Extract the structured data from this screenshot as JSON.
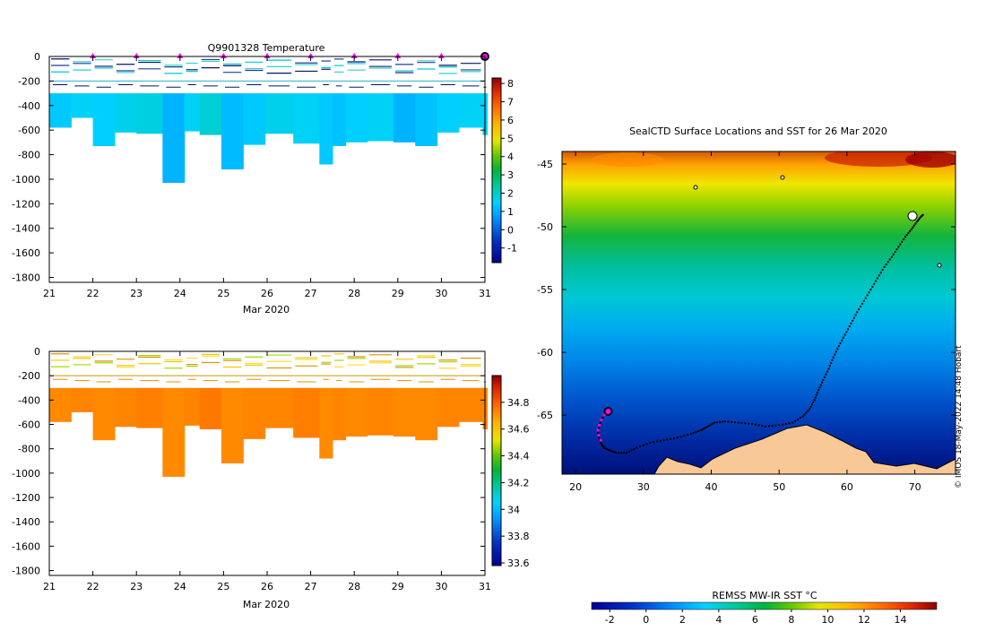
{
  "credit": "© IMOS 18-May-2022 14:48 Hobart",
  "chart_data": [
    {
      "id": "temperature",
      "type": "heatmap",
      "title": "Q9901328  Temperature",
      "xlabel": "Mar 2020",
      "ylabel": "",
      "xlim": [
        21,
        31
      ],
      "ylim": [
        -1840,
        0
      ],
      "xticks": [
        21,
        22,
        23,
        24,
        25,
        26,
        27,
        28,
        29,
        30,
        31
      ],
      "yticks": [
        0,
        -200,
        -400,
        -600,
        -800,
        -1000,
        -1200,
        -1400,
        -1600,
        -1800
      ],
      "colorbar": {
        "min": -1.8,
        "max": 8.3,
        "ticks": [
          8,
          7,
          6,
          5,
          4,
          3,
          2,
          1,
          0,
          -1
        ]
      },
      "reference_depth": -200,
      "marker_days": [
        22,
        23,
        24,
        25,
        26,
        27,
        28,
        29,
        30
      ],
      "profiles": [
        {
          "x0": 21.0,
          "x1": 21.5,
          "bottom": -580,
          "value": 1.4
        },
        {
          "x0": 21.5,
          "x1": 22.0,
          "bottom": -500,
          "value": 1.6
        },
        {
          "x0": 22.0,
          "x1": 22.5,
          "bottom": -730,
          "value": 1.5
        },
        {
          "x0": 22.5,
          "x1": 23.0,
          "bottom": -620,
          "value": 1.7
        },
        {
          "x0": 23.0,
          "x1": 23.6,
          "bottom": -630,
          "value": 1.8
        },
        {
          "x0": 23.6,
          "x1": 24.1,
          "bottom": -1030,
          "value": 1.1
        },
        {
          "x0": 24.1,
          "x1": 24.45,
          "bottom": -610,
          "value": 1.6
        },
        {
          "x0": 24.45,
          "x1": 24.95,
          "bottom": -640,
          "value": 1.9
        },
        {
          "x0": 24.95,
          "x1": 25.45,
          "bottom": -920,
          "value": 1.2
        },
        {
          "x0": 25.45,
          "x1": 25.95,
          "bottom": -720,
          "value": 1.4
        },
        {
          "x0": 25.95,
          "x1": 26.6,
          "bottom": -630,
          "value": 1.7
        },
        {
          "x0": 26.6,
          "x1": 27.2,
          "bottom": -710,
          "value": 1.6
        },
        {
          "x0": 27.2,
          "x1": 27.5,
          "bottom": -880,
          "value": 1.4
        },
        {
          "x0": 27.5,
          "x1": 27.8,
          "bottom": -730,
          "value": 1.3
        },
        {
          "x0": 27.8,
          "x1": 28.3,
          "bottom": -700,
          "value": 1.5
        },
        {
          "x0": 28.3,
          "x1": 28.9,
          "bottom": -690,
          "value": 1.6
        },
        {
          "x0": 28.9,
          "x1": 29.4,
          "bottom": -700,
          "value": 1.1
        },
        {
          "x0": 29.4,
          "x1": 29.9,
          "bottom": -730,
          "value": 1.3
        },
        {
          "x0": 29.9,
          "x1": 30.4,
          "bottom": -620,
          "value": 1.5
        },
        {
          "x0": 30.4,
          "x1": 30.95,
          "bottom": -580,
          "value": 1.6
        },
        {
          "x0": 30.95,
          "x1": 31.05,
          "bottom": -640,
          "value": 1.6
        }
      ]
    },
    {
      "id": "salinity",
      "type": "heatmap",
      "title": "",
      "xlabel": "Mar 2020",
      "ylabel": "",
      "xlim": [
        21,
        31
      ],
      "ylim": [
        -1840,
        0
      ],
      "xticks": [
        21,
        22,
        23,
        24,
        25,
        26,
        27,
        28,
        29,
        30,
        31
      ],
      "yticks": [
        0,
        -200,
        -400,
        -600,
        -800,
        -1000,
        -1200,
        -1400,
        -1600,
        -1800
      ],
      "colorbar": {
        "min": 33.58,
        "max": 35.0,
        "ticks": [
          34.8,
          34.6,
          34.4,
          34.2,
          34,
          33.8,
          33.6
        ]
      },
      "reference_depth": -200,
      "profiles": [
        {
          "x0": 21.0,
          "x1": 21.5,
          "bottom": -580,
          "value": 34.72
        },
        {
          "x0": 21.5,
          "x1": 22.0,
          "bottom": -500,
          "value": 34.73
        },
        {
          "x0": 22.0,
          "x1": 22.5,
          "bottom": -730,
          "value": 34.72
        },
        {
          "x0": 22.5,
          "x1": 23.0,
          "bottom": -620,
          "value": 34.73
        },
        {
          "x0": 23.0,
          "x1": 23.6,
          "bottom": -630,
          "value": 34.74
        },
        {
          "x0": 23.6,
          "x1": 24.1,
          "bottom": -1030,
          "value": 34.72
        },
        {
          "x0": 24.1,
          "x1": 24.45,
          "bottom": -610,
          "value": 34.73
        },
        {
          "x0": 24.45,
          "x1": 24.95,
          "bottom": -640,
          "value": 34.75
        },
        {
          "x0": 24.95,
          "x1": 25.45,
          "bottom": -920,
          "value": 34.72
        },
        {
          "x0": 25.45,
          "x1": 25.95,
          "bottom": -720,
          "value": 34.73
        },
        {
          "x0": 25.95,
          "x1": 26.6,
          "bottom": -630,
          "value": 34.73
        },
        {
          "x0": 26.6,
          "x1": 27.2,
          "bottom": -710,
          "value": 34.74
        },
        {
          "x0": 27.2,
          "x1": 27.5,
          "bottom": -880,
          "value": 34.72
        },
        {
          "x0": 27.5,
          "x1": 27.8,
          "bottom": -730,
          "value": 34.73
        },
        {
          "x0": 27.8,
          "x1": 28.3,
          "bottom": -700,
          "value": 34.72
        },
        {
          "x0": 28.3,
          "x1": 28.9,
          "bottom": -690,
          "value": 34.73
        },
        {
          "x0": 28.9,
          "x1": 29.4,
          "bottom": -700,
          "value": 34.72
        },
        {
          "x0": 29.4,
          "x1": 29.9,
          "bottom": -730,
          "value": 34.72
        },
        {
          "x0": 29.9,
          "x1": 30.4,
          "bottom": -620,
          "value": 34.73
        },
        {
          "x0": 30.4,
          "x1": 30.95,
          "bottom": -580,
          "value": 34.73
        },
        {
          "x0": 30.95,
          "x1": 31.05,
          "bottom": -640,
          "value": 34.73
        }
      ]
    },
    {
      "id": "map",
      "type": "heatmap",
      "title": "SealCTD Surface Locations and SST for 26 Mar 2020",
      "xlim": [
        18,
        76
      ],
      "ylim": [
        -69.7,
        -44
      ],
      "xticks": [
        20,
        30,
        40,
        50,
        60,
        70
      ],
      "yticks": [
        -45,
        -50,
        -55,
        -60,
        -65
      ],
      "track": [
        [
          24.8,
          -64.7
        ],
        [
          24.2,
          -65.0
        ],
        [
          23.9,
          -65.3
        ],
        [
          23.6,
          -65.7
        ],
        [
          23.4,
          -66.1
        ],
        [
          23.3,
          -66.5
        ],
        [
          23.5,
          -66.9
        ],
        [
          23.8,
          -67.3
        ],
        [
          24.2,
          -67.6
        ],
        [
          25,
          -67.8
        ],
        [
          26,
          -68.0
        ],
        [
          27.5,
          -68.0
        ],
        [
          29,
          -67.6
        ],
        [
          31,
          -67.2
        ],
        [
          33,
          -67.0
        ],
        [
          35,
          -66.8
        ],
        [
          37,
          -66.5
        ],
        [
          38.5,
          -66.2
        ],
        [
          39.5,
          -65.9
        ],
        [
          40.5,
          -65.6
        ],
        [
          42,
          -65.5
        ],
        [
          44,
          -65.6
        ],
        [
          46,
          -65.7
        ],
        [
          48,
          -65.9
        ],
        [
          50,
          -65.8
        ],
        [
          52,
          -65.6
        ],
        [
          53.5,
          -65.1
        ],
        [
          54.5,
          -64.5
        ],
        [
          55.2,
          -63.8
        ],
        [
          55.8,
          -63.0
        ],
        [
          56.5,
          -62.2
        ],
        [
          57.3,
          -61.3
        ],
        [
          58.0,
          -60.4
        ],
        [
          58.8,
          -59.5
        ],
        [
          59.7,
          -58.6
        ],
        [
          60.6,
          -57.7
        ],
        [
          61.5,
          -56.8
        ],
        [
          62.5,
          -55.9
        ],
        [
          63.5,
          -55.0
        ],
        [
          64.5,
          -54.1
        ],
        [
          65.5,
          -53.2
        ],
        [
          66.6,
          -52.4
        ],
        [
          67.6,
          -51.6
        ],
        [
          68.6,
          -50.8
        ],
        [
          69.5,
          -50.2
        ],
        [
          70.3,
          -49.6
        ],
        [
          70.9,
          -49.2
        ],
        [
          71.3,
          -49.0
        ]
      ],
      "recent_track": [
        [
          24.8,
          -64.7
        ],
        [
          24.2,
          -65.0
        ],
        [
          23.8,
          -65.4
        ],
        [
          23.5,
          -65.8
        ],
        [
          23.3,
          -66.2
        ],
        [
          23.4,
          -66.6
        ],
        [
          23.7,
          -67.0
        ]
      ],
      "current_position": [
        24.8,
        -64.7
      ],
      "colorbar": {
        "label": "REMSS MW-IR SST °C",
        "min": -3,
        "max": 16,
        "ticks": [
          -2,
          0,
          2,
          4,
          6,
          8,
          10,
          12,
          14
        ]
      }
    }
  ]
}
